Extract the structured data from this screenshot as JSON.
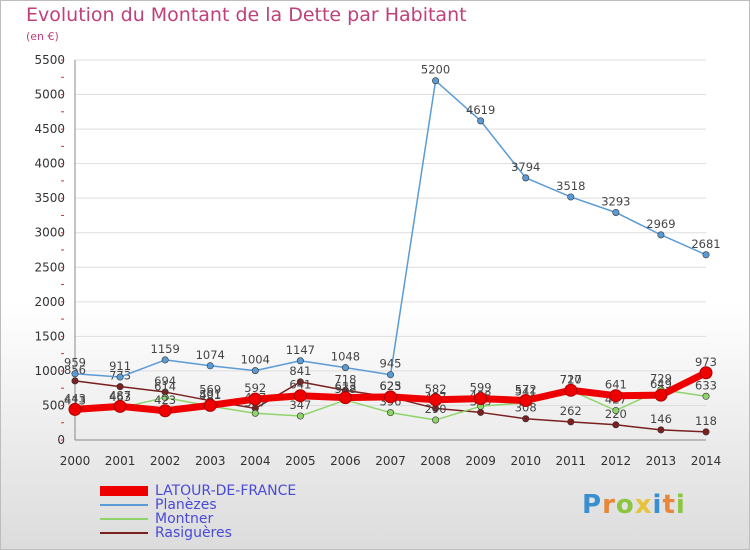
{
  "chart_data": {
    "type": "line",
    "title": "Evolution du Montant de la Dette par Habitant",
    "subtitle": "(en €)",
    "ylim": [
      0,
      5500
    ],
    "yticks": [
      0,
      500,
      1000,
      1500,
      2000,
      2500,
      3000,
      3500,
      4000,
      4500,
      5000,
      5500
    ],
    "grid": true,
    "legend_position": "bottom-left",
    "x": [
      "2000",
      "2001",
      "2002",
      "2003",
      "2004",
      "2005",
      "2006",
      "2007",
      "2008",
      "2009",
      "2010",
      "2011",
      "2012",
      "2013",
      "2014"
    ],
    "series": [
      {
        "name": "Rasiguères",
        "color": "#7a2020",
        "values": [
          856,
          773,
          694,
          569,
          457,
          841,
          718,
          623,
          457,
          399,
          308,
          262,
          220,
          146,
          118
        ]
      },
      {
        "name": "Montner",
        "color": "#8ed46a",
        "values": [
          413,
          463,
          614,
          491,
          387,
          347,
          578,
          396,
          290,
          488,
          541,
          717,
          427,
          729,
          633
        ]
      },
      {
        "name": "Planèzes",
        "color": "#5b9bd5",
        "values": [
          959,
          911,
          1159,
          1074,
          1004,
          1147,
          1048,
          945,
          5200,
          4619,
          3794,
          3518,
          3293,
          2969,
          2681
        ]
      },
      {
        "name": "LATOUR-DE-FRANCE",
        "color": "#ee0000",
        "values": [
          443,
          487,
          423,
          501,
          592,
          641,
          613,
          625,
          582,
          599,
          572,
          720,
          641,
          649,
          973
        ]
      }
    ]
  },
  "logo": {
    "letters": [
      "P",
      "r",
      "o",
      "x",
      "i",
      "t",
      "i"
    ],
    "colors": [
      "#3a8fd0",
      "#e8873a",
      "#8cc63f",
      "#e8c33a",
      "#3a8fd0",
      "#e8873a",
      "#8cc63f"
    ]
  }
}
